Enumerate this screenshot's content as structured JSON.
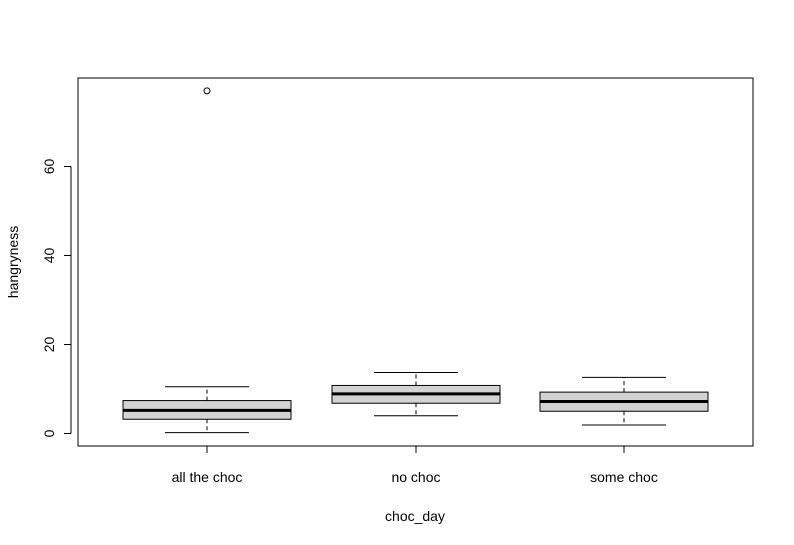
{
  "chart_data": {
    "type": "boxplot",
    "title": "",
    "xlabel": "choc_day",
    "ylabel": "hangryness",
    "ylim": [
      -3,
      78
    ],
    "yticks": [
      0,
      20,
      40,
      60
    ],
    "categories": [
      "all the choc",
      "no choc",
      "some choc"
    ],
    "boxes": [
      {
        "category": "all the choc",
        "whisker_low": 0.2,
        "q1": 3.2,
        "median": 5.2,
        "q3": 7.4,
        "whisker_high": 10.5,
        "outliers": [
          77
        ]
      },
      {
        "category": "no choc",
        "whisker_low": 4.0,
        "q1": 6.8,
        "median": 8.9,
        "q3": 10.8,
        "whisker_high": 13.7,
        "outliers": []
      },
      {
        "category": "some choc",
        "whisker_low": 1.9,
        "q1": 5.0,
        "median": 7.2,
        "q3": 9.3,
        "whisker_high": 12.6,
        "outliers": []
      }
    ],
    "box_fill": "#d3d3d3",
    "grid": false
  }
}
